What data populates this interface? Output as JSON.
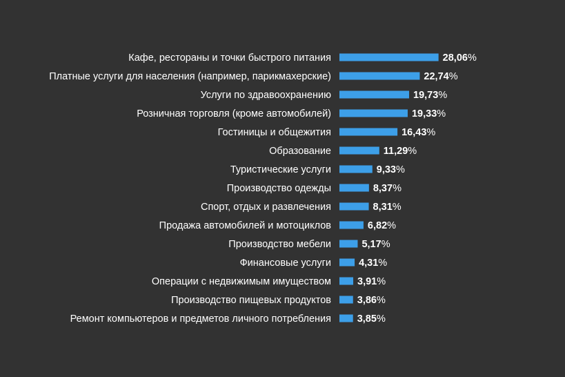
{
  "chart_data": {
    "type": "bar",
    "orientation": "horizontal",
    "categories": [
      "Кафе, рестораны и точки быстрого питания",
      "Платные услуги для населения (например, парикмахерские)",
      "Услуги по здравоохранению",
      "Розничная торговля (кроме автомобилей)",
      "Гостиницы и общежития",
      "Образование",
      "Туристические услуги",
      "Производство одежды",
      "Спорт, отдых и развлечения",
      "Продажа автомобилей и мотоциклов",
      "Производство мебели",
      "Финансовые услуги",
      "Операции с недвижимым имуществом",
      "Производство пищевых продуктов",
      "Ремонт компьютеров и предметов личного потребления"
    ],
    "values": [
      28.06,
      22.74,
      19.73,
      19.33,
      16.43,
      11.29,
      9.33,
      8.37,
      8.31,
      6.82,
      5.17,
      4.31,
      3.91,
      3.86,
      3.85
    ],
    "value_labels": [
      "28,06",
      "22,74",
      "19,73",
      "19,33",
      "16,43",
      "11,29",
      "9,33",
      "8,37",
      "8,31",
      "6,82",
      "5,17",
      "4,31",
      "3,91",
      "3,86",
      "3,85"
    ],
    "value_suffix": "%",
    "title": "",
    "xlabel": "",
    "ylabel": "",
    "grid": false,
    "legend": "none",
    "colors": {
      "background": "#323232",
      "bar": "#3d9fe8",
      "text": "#ffffff"
    }
  }
}
